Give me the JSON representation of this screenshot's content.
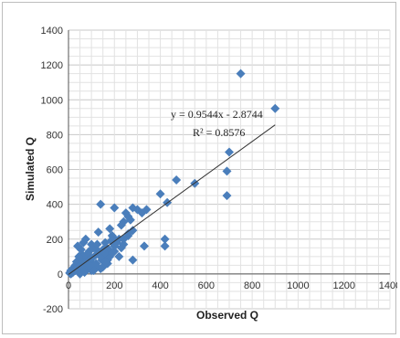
{
  "chart_data": {
    "type": "scatter",
    "title": "",
    "xlabel": "Observed Q",
    "ylabel": "Simulated Q",
    "xlim": [
      0,
      1400
    ],
    "ylim": [
      -200,
      1400
    ],
    "xticks": [
      0,
      200,
      400,
      600,
      800,
      1000,
      1200,
      1400
    ],
    "yticks": [
      -200,
      0,
      200,
      400,
      600,
      800,
      1000,
      1200,
      1400
    ],
    "grid": true,
    "legend": "none",
    "marker": "diamond",
    "point_color": "#4a7ebb",
    "trendline_color": "#333333",
    "trendline": {
      "slope": 0.9544,
      "intercept": -2.8744,
      "x_range": [
        0,
        900
      ]
    },
    "annotations": {
      "equation": "y = 0.9544x - 2.8744",
      "r2": "R² = 0.8576"
    },
    "series": [
      {
        "x": [
          750,
          900,
          700,
          690,
          550,
          470,
          430,
          400,
          690,
          420,
          420,
          340,
          320,
          300,
          280,
          260,
          240,
          220,
          330,
          140,
          200,
          250,
          280,
          230,
          270,
          260,
          180,
          230,
          240,
          210,
          220,
          200,
          190,
          160,
          150,
          130,
          170,
          180,
          120,
          110,
          100,
          90,
          80,
          70,
          60,
          50,
          40,
          30,
          20,
          10,
          5,
          15,
          25,
          35,
          45,
          55,
          65,
          75,
          85,
          95,
          105,
          115,
          125,
          135,
          145,
          155,
          165,
          175,
          185,
          195,
          60,
          80,
          100,
          120,
          140,
          40,
          50,
          70,
          90,
          110,
          130,
          20,
          30,
          10,
          15,
          8,
          12,
          18,
          22,
          28,
          33,
          38,
          42,
          48,
          52,
          58,
          62,
          68,
          72,
          78,
          82,
          88,
          92,
          98,
          102,
          160,
          200,
          240,
          280,
          150,
          170,
          190,
          210,
          260,
          50,
          70,
          90,
          120,
          140,
          160
        ],
        "y": [
          1150,
          950,
          700,
          590,
          520,
          540,
          410,
          460,
          450,
          200,
          160,
          370,
          350,
          370,
          380,
          330,
          300,
          200,
          160,
          400,
          380,
          350,
          80,
          280,
          310,
          220,
          260,
          150,
          170,
          190,
          100,
          130,
          220,
          180,
          140,
          130,
          60,
          100,
          110,
          150,
          170,
          130,
          60,
          90,
          110,
          80,
          60,
          50,
          30,
          20,
          5,
          15,
          40,
          70,
          100,
          140,
          180,
          200,
          120,
          90,
          60,
          40,
          170,
          120,
          80,
          110,
          150,
          140,
          190,
          210,
          20,
          30,
          20,
          50,
          100,
          160,
          30,
          10,
          40,
          20,
          240,
          10,
          20,
          0,
          5,
          10,
          15,
          25,
          20,
          30,
          35,
          25,
          40,
          45,
          50,
          55,
          45,
          60,
          65,
          70,
          60,
          75,
          80,
          85,
          90,
          120,
          160,
          200,
          250,
          40,
          80,
          120,
          180,
          230,
          0,
          10,
          50,
          60,
          30,
          70
        ]
      }
    ]
  }
}
